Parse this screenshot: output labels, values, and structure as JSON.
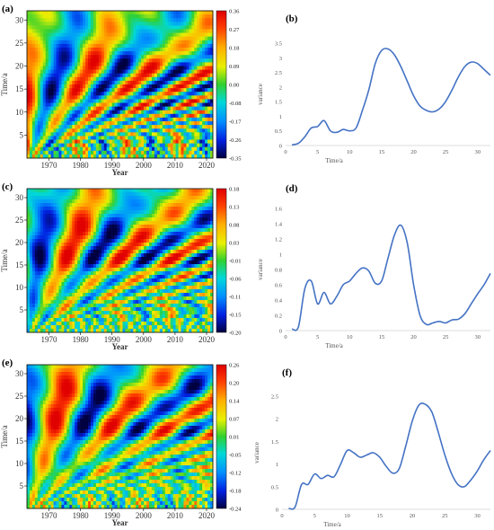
{
  "chart_data": [
    {
      "type": "heatmap",
      "panel_label": "(a)",
      "xlabel": "Year",
      "ylabel": "Time/a",
      "xticks": [
        1970,
        1980,
        1990,
        2000,
        2010,
        2020
      ],
      "yticks": [
        5,
        10,
        15,
        20,
        25,
        30
      ],
      "xlim": [
        1963,
        2022
      ],
      "ylim": [
        0,
        32
      ],
      "colorbar_ticks": [
        "0.36",
        "0.27",
        "0.18",
        "0.09",
        "0.00",
        "-0.08",
        "-0.17",
        "-0.26",
        "-0.35"
      ],
      "seed": 1
    },
    {
      "type": "line",
      "panel_label": "(b)",
      "xlabel": "Time/a",
      "ylabel": "variance",
      "xticks": [
        0,
        5,
        10,
        15,
        20,
        25,
        30
      ],
      "yticks": [
        "0",
        "0.5",
        "1",
        "1.5",
        "2",
        "2.5",
        "3",
        "3.5"
      ],
      "xlim": [
        0,
        32
      ],
      "ylim": [
        0,
        3.5
      ],
      "series": [
        {
          "color": "#4472c4",
          "x": [
            1,
            2,
            3,
            4,
            5,
            6,
            7,
            8,
            9,
            10,
            11,
            12,
            13,
            14,
            15,
            16,
            17,
            18,
            19,
            20,
            21,
            22,
            23,
            24,
            25,
            26,
            27,
            28,
            29,
            30,
            31,
            32
          ],
          "values": [
            0.02,
            0.08,
            0.3,
            0.6,
            0.65,
            0.85,
            0.5,
            0.45,
            0.55,
            0.5,
            0.6,
            1.2,
            1.9,
            2.8,
            3.25,
            3.3,
            3.1,
            2.7,
            2.2,
            1.7,
            1.35,
            1.2,
            1.15,
            1.25,
            1.5,
            1.9,
            2.35,
            2.7,
            2.85,
            2.8,
            2.6,
            2.4
          ]
        }
      ]
    },
    {
      "type": "heatmap",
      "panel_label": "(c)",
      "xlabel": "Year",
      "ylabel": "Time/a",
      "xticks": [
        1970,
        1980,
        1990,
        2000,
        2010,
        2020
      ],
      "yticks": [
        5,
        10,
        15,
        20,
        25,
        30
      ],
      "xlim": [
        1963,
        2022
      ],
      "ylim": [
        0,
        32
      ],
      "colorbar_ticks": [
        "0.18",
        "0.13",
        "0.08",
        "0.03",
        "-0.01",
        "-0.06",
        "-0.11",
        "-0.15",
        "-0.20"
      ],
      "seed": 2
    },
    {
      "type": "line",
      "panel_label": "(d)",
      "xlabel": "Time/a",
      "ylabel": "variance",
      "xticks": [
        0,
        5,
        10,
        15,
        20,
        25,
        30
      ],
      "yticks": [
        "0",
        "0.2",
        "0.4",
        "0.6",
        "0.8",
        "1",
        "1.2",
        "1.4",
        "1.6"
      ],
      "xlim": [
        0,
        32
      ],
      "ylim": [
        0,
        1.6
      ],
      "series": [
        {
          "color": "#4472c4",
          "x": [
            1,
            2,
            3,
            4,
            5,
            6,
            7,
            8,
            9,
            10,
            11,
            12,
            13,
            14,
            15,
            16,
            17,
            18,
            19,
            20,
            21,
            22,
            23,
            24,
            25,
            26,
            27,
            28,
            29,
            30,
            31,
            32
          ],
          "values": [
            0.02,
            0.05,
            0.55,
            0.65,
            0.35,
            0.5,
            0.35,
            0.45,
            0.6,
            0.65,
            0.75,
            0.82,
            0.78,
            0.62,
            0.65,
            0.95,
            1.25,
            1.38,
            1.15,
            0.6,
            0.2,
            0.08,
            0.1,
            0.12,
            0.1,
            0.14,
            0.15,
            0.22,
            0.35,
            0.48,
            0.6,
            0.75
          ]
        }
      ]
    },
    {
      "type": "heatmap",
      "panel_label": "(e)",
      "xlabel": "Year",
      "ylabel": "Time/a",
      "xticks": [
        1970,
        1980,
        1990,
        2000,
        2010,
        2020
      ],
      "yticks": [
        5,
        10,
        15,
        20,
        25,
        30
      ],
      "xlim": [
        1963,
        2022
      ],
      "ylim": [
        0,
        32
      ],
      "colorbar_ticks": [
        "0.26",
        "0.20",
        "0.14",
        "0.07",
        "0.01",
        "-0.05",
        "-0.12",
        "-0.18",
        "-0.24"
      ],
      "seed": 3
    },
    {
      "type": "line",
      "panel_label": "(f)",
      "xlabel": "Time/a",
      "ylabel": "variance",
      "xticks": [
        0,
        5,
        10,
        15,
        20,
        25,
        30
      ],
      "yticks": [
        "0",
        "0.5",
        "1",
        "1.5",
        "2",
        "2.5"
      ],
      "xlim": [
        0,
        32
      ],
      "ylim": [
        0,
        2.5
      ],
      "series": [
        {
          "color": "#4472c4",
          "x": [
            1,
            2,
            3,
            4,
            5,
            6,
            7,
            8,
            9,
            10,
            11,
            12,
            13,
            14,
            15,
            16,
            17,
            18,
            19,
            20,
            21,
            22,
            23,
            24,
            25,
            26,
            27,
            28,
            29,
            30,
            31,
            32
          ],
          "values": [
            0.02,
            0.05,
            0.55,
            0.55,
            0.78,
            0.68,
            0.75,
            0.72,
            1.0,
            1.3,
            1.25,
            1.15,
            1.2,
            1.25,
            1.15,
            0.95,
            0.8,
            0.9,
            1.4,
            1.95,
            2.3,
            2.32,
            2.15,
            1.7,
            1.2,
            0.8,
            0.55,
            0.5,
            0.65,
            0.85,
            1.1,
            1.3
          ]
        }
      ]
    }
  ]
}
